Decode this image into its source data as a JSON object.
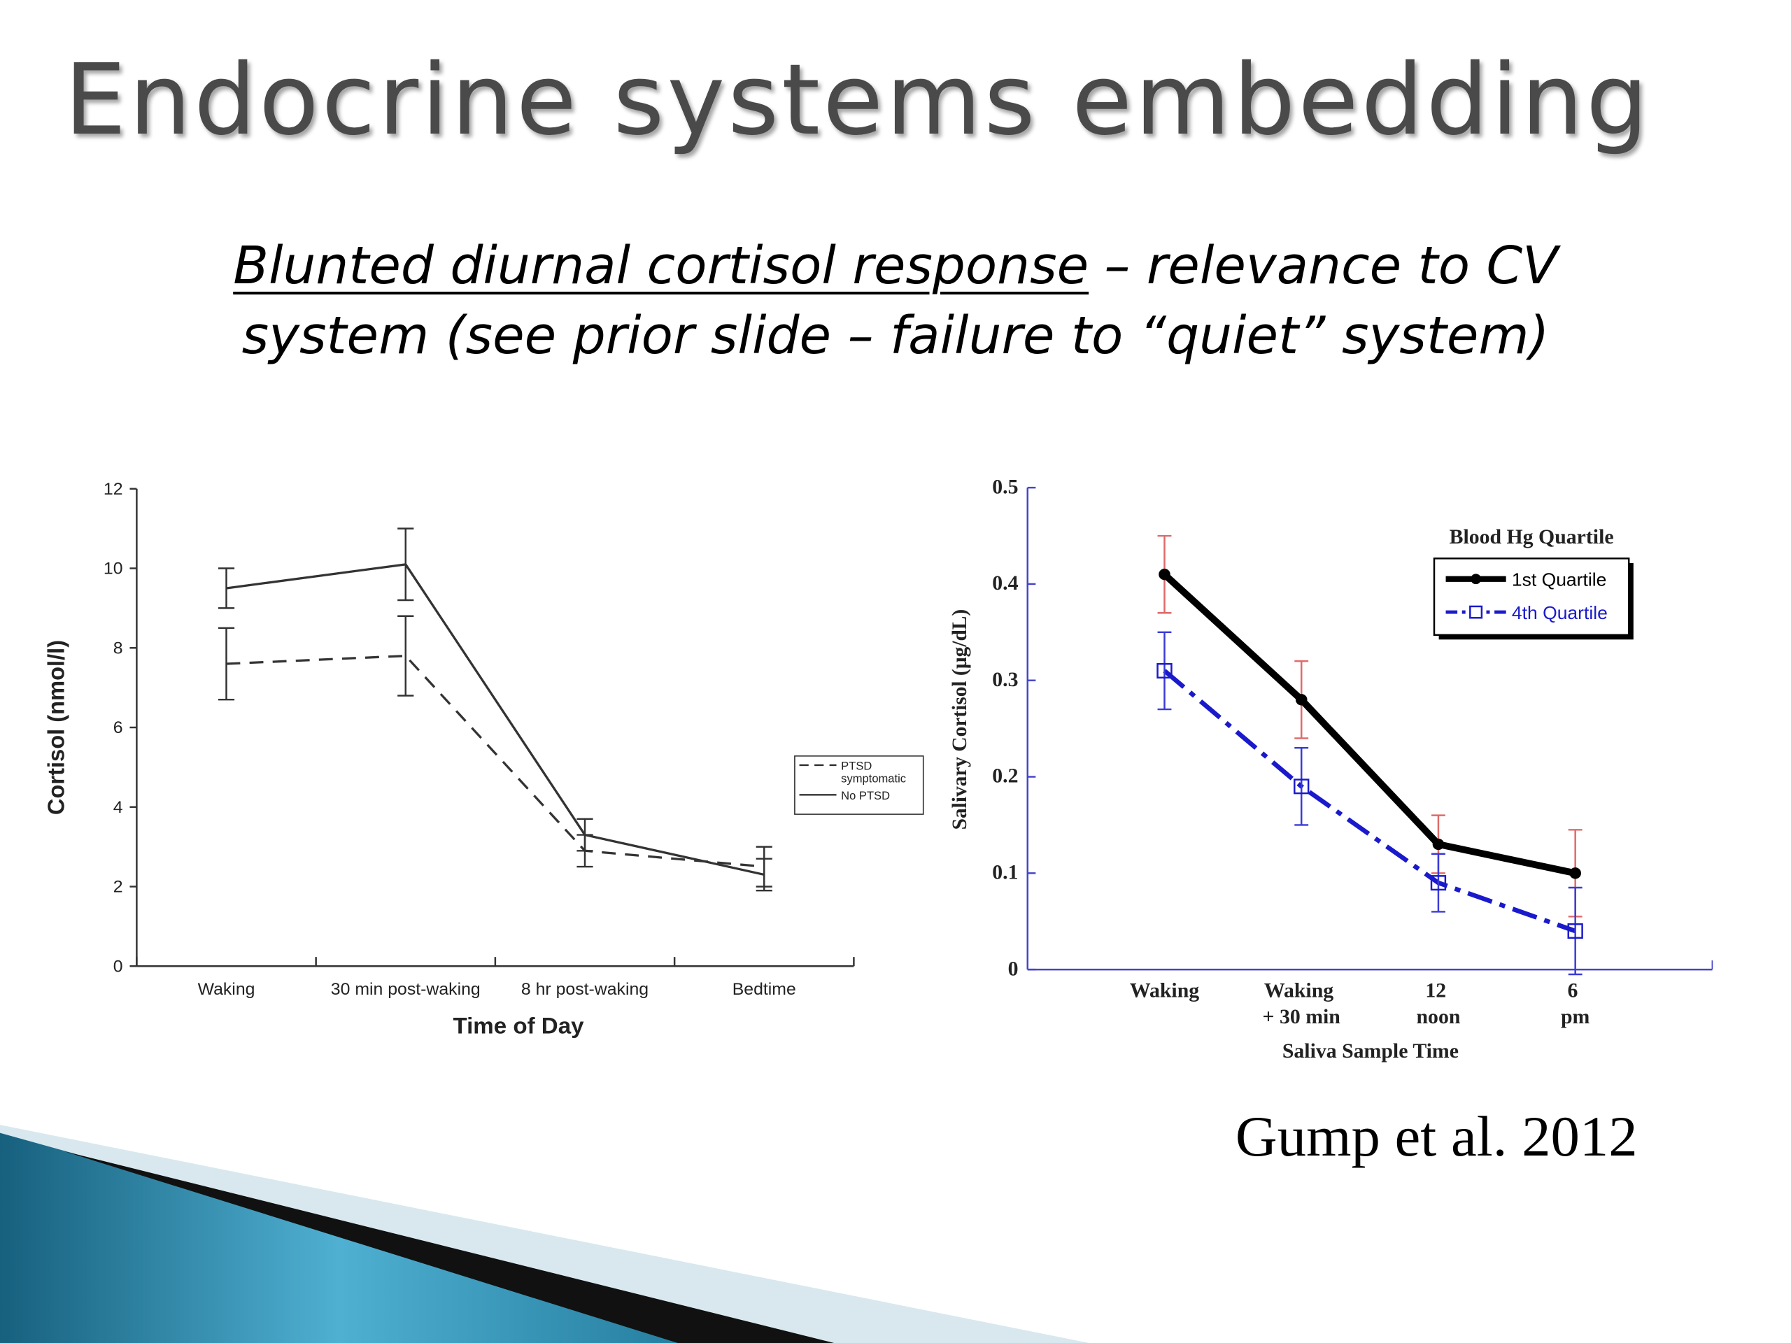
{
  "title": "Endocrine systems embedding",
  "subtitle": {
    "emphasis": "Blunted diurnal cortisol response",
    "text": "– relevance to CV system (see prior slide – failure to “quiet” system)"
  },
  "citation": "Gump et al. 2012",
  "chart_data": [
    {
      "type": "line",
      "x_label": "Time of Day",
      "y_label": "Cortisol (nmol/l)",
      "categories": [
        "Waking",
        "30 min post-waking",
        "8 hr post-waking",
        "Bedtime"
      ],
      "ylim": [
        0,
        12
      ],
      "yticks": [
        0,
        2,
        4,
        6,
        8,
        10,
        12
      ],
      "series": [
        {
          "name": "PTSD symptomatic",
          "color": "#333333",
          "dash": "dashed",
          "marker": "none",
          "values": [
            7.6,
            7.8,
            2.9,
            2.5
          ],
          "errors": [
            0.9,
            1.0,
            0.4,
            0.5
          ],
          "error_color": "#333333"
        },
        {
          "name": "No PTSD",
          "color": "#333333",
          "dash": "solid",
          "marker": "none",
          "values": [
            9.5,
            10.1,
            3.3,
            2.3
          ],
          "errors": [
            0.5,
            0.9,
            0.4,
            0.4
          ],
          "error_color": "#333333"
        }
      ]
    },
    {
      "type": "line",
      "legend_title": "Blood Hg Quartile",
      "x_label": "Saliva Sample Time",
      "y_label": "Salivary Cortisol (µg/dL)",
      "categories": [
        "Waking",
        "Waking + 30 min",
        "12 noon",
        "6 pm"
      ],
      "ylim": [
        0,
        0.5
      ],
      "yticks": [
        0,
        0.1,
        0.2,
        0.3,
        0.4,
        0.5
      ],
      "series": [
        {
          "name": "1st Quartile",
          "color": "#000000",
          "dash": "solid",
          "marker": "circle",
          "values": [
            0.41,
            0.28,
            0.13,
            0.1
          ],
          "errors": [
            0.04,
            0.04,
            0.03,
            0.045
          ],
          "error_color": "#e06a6a"
        },
        {
          "name": "4th Quartile",
          "color": "#1a1acc",
          "dash": "dashdot",
          "marker": "square",
          "values": [
            0.31,
            0.19,
            0.09,
            0.04
          ],
          "errors": [
            0.04,
            0.04,
            0.03,
            0.045
          ],
          "error_color": "#3a3ad8"
        }
      ]
    }
  ]
}
